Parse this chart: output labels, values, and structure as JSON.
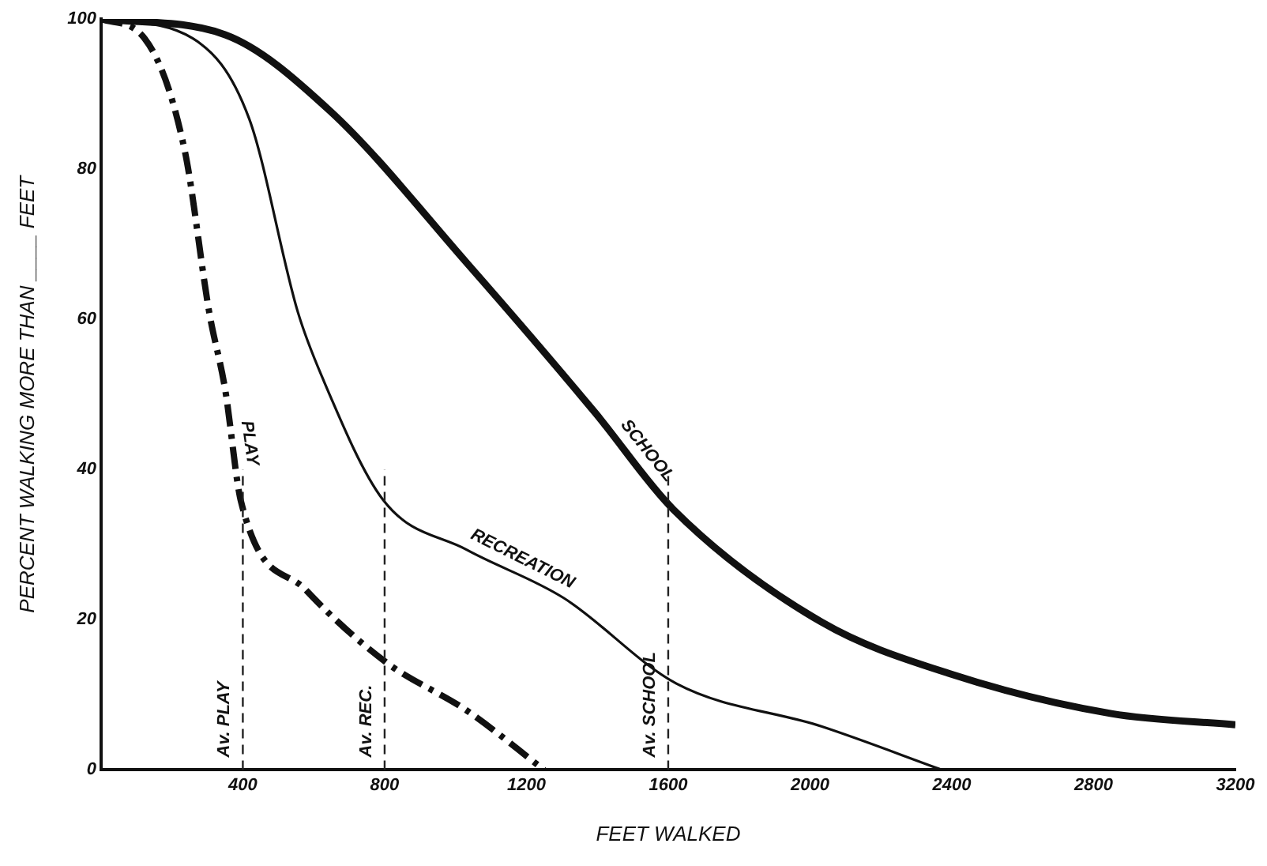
{
  "chart_data": {
    "type": "line",
    "xlabel": "FEET WALKED",
    "ylabel": "PERCENT WALKING MORE THAN ____ FEET",
    "xlim": [
      0,
      3200
    ],
    "xticks": [
      400,
      800,
      1200,
      1600,
      2000,
      2400,
      2800,
      3200
    ],
    "ylim": [
      0,
      100
    ],
    "yticks": [
      0,
      20,
      40,
      60,
      80,
      100
    ],
    "grid": false,
    "legend": false,
    "marker": "none",
    "series": [
      {
        "name": "PLAY",
        "color": "#111111",
        "line_style": "dashed",
        "x": [
          0,
          123,
          236,
          305,
          350,
          395,
          577,
          805,
          1032,
          1250
        ],
        "values": [
          100,
          97.4,
          82.5,
          61,
          50.7,
          35.7,
          24,
          14.3,
          7.9,
          0
        ]
      },
      {
        "name": "RECREATION",
        "color": "#111111",
        "line_style": "solid",
        "x": [
          0,
          259,
          418,
          555,
          623,
          795,
          1032,
          1305,
          1623,
          2032,
          2373
        ],
        "values": [
          100,
          97.4,
          86.7,
          61,
          52.4,
          36,
          29.3,
          22.9,
          11.5,
          5.8,
          0
        ]
      },
      {
        "name": "SCHOOL",
        "color": "#111111",
        "line_style": "solid",
        "x": [
          0,
          350,
          645,
          1032,
          1395,
          1614,
          2032,
          2395,
          2850,
          3200
        ],
        "values": [
          100,
          97.9,
          87.8,
          67.5,
          47.5,
          34.7,
          19.7,
          12.8,
          7.5,
          6
        ]
      }
    ],
    "ref_lines": [
      {
        "axis": "x",
        "value": 400,
        "label": "Av. PLAY",
        "line_style": "dashed"
      },
      {
        "axis": "x",
        "value": 800,
        "label": "Av. REC.",
        "line_style": "dashed"
      },
      {
        "axis": "x",
        "value": 1600,
        "label": "Av. SCHOOL",
        "line_style": "dashed"
      }
    ]
  }
}
